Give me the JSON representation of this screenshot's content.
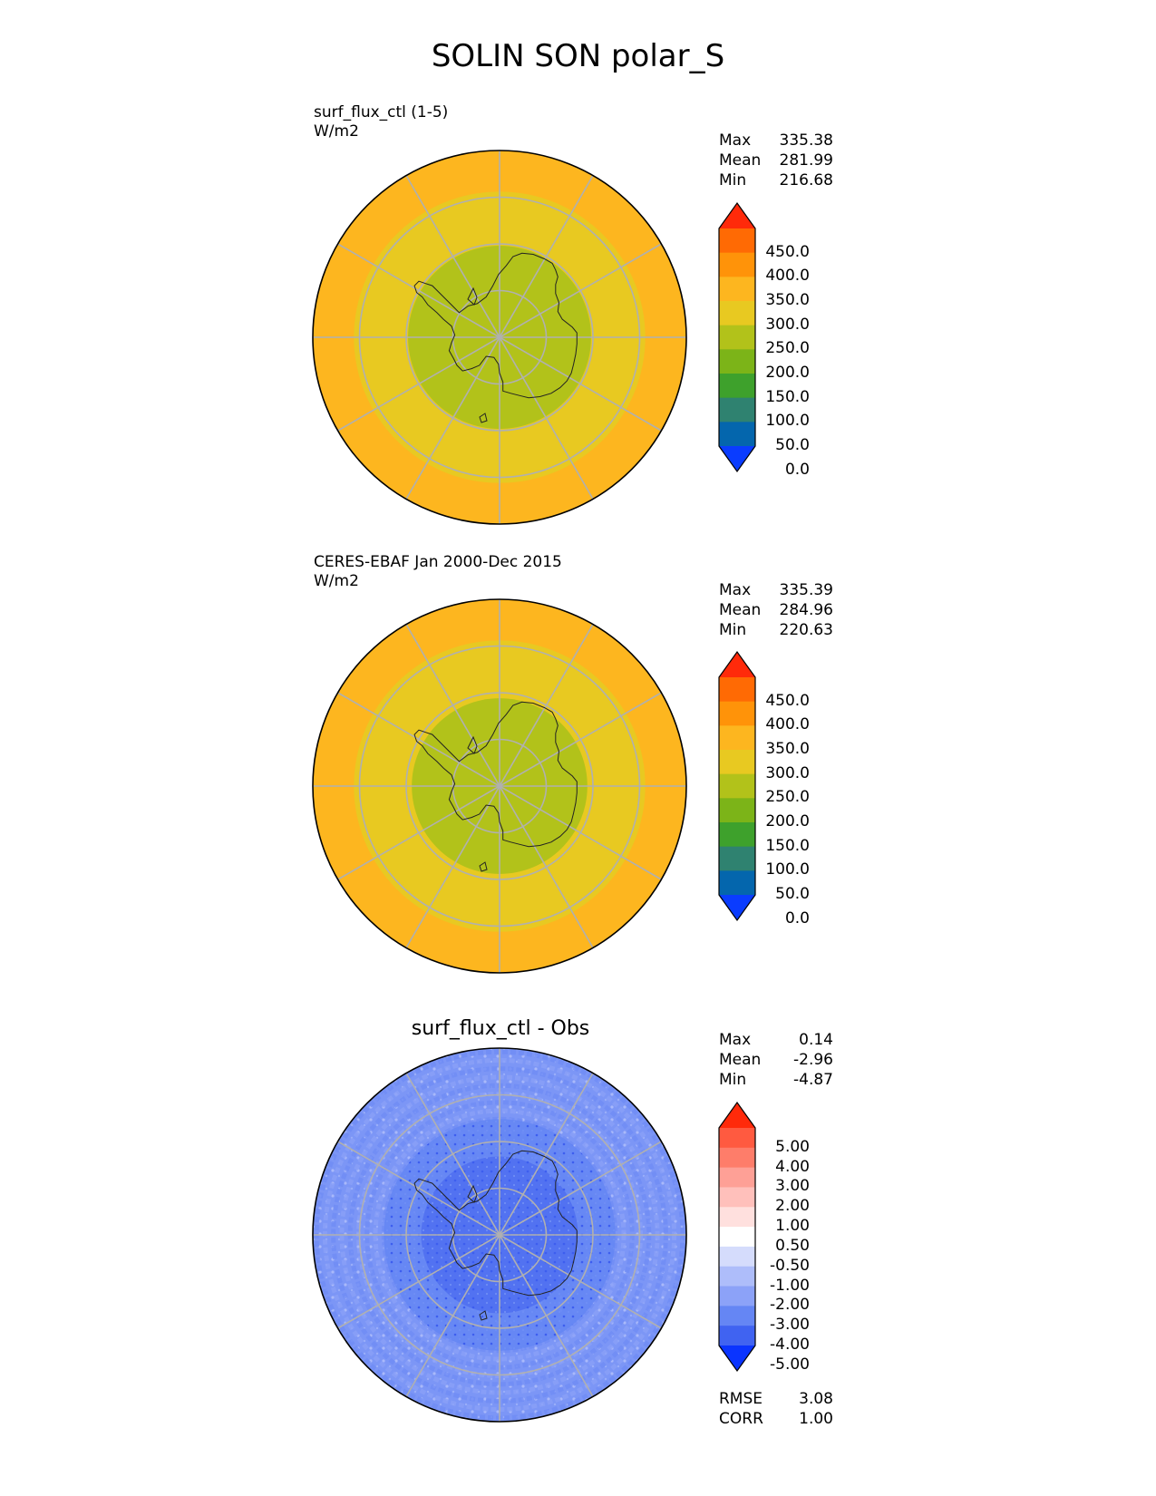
{
  "title": "SOLIN SON polar_S",
  "colors": {
    "ring_outer": "#fdb61f",
    "ring_mid": "#e8c921",
    "ring_inner": "#b2c21a",
    "diff_base": "#7c96f6",
    "diff_mid": "#6586f4",
    "diff_inner": "#4f6ff0",
    "grid": "#b0b0b0",
    "coast": "#222222"
  },
  "panels": [
    {
      "id": "test",
      "title_line1": "surf_flux_ctl (1-5)",
      "title_line2": "W/m2",
      "stats": [
        {
          "label": "Max",
          "value": "335.38"
        },
        {
          "label": "Mean",
          "value": "281.99"
        },
        {
          "label": "Min",
          "value": "216.68"
        }
      ]
    },
    {
      "id": "ref",
      "title_line1": "CERES-EBAF Jan 2000-Dec 2015",
      "title_line2": "W/m2",
      "stats": [
        {
          "label": "Max",
          "value": "335.39"
        },
        {
          "label": "Mean",
          "value": "284.96"
        },
        {
          "label": "Min",
          "value": "220.63"
        }
      ]
    },
    {
      "id": "diff",
      "title_center": "surf_flux_ctl - Obs",
      "stats": [
        {
          "label": "Max",
          "value": "0.14"
        },
        {
          "label": "Mean",
          "value": "-2.96"
        },
        {
          "label": "Min",
          "value": "-4.87"
        }
      ],
      "metrics": [
        {
          "label": "RMSE",
          "value": "3.08"
        },
        {
          "label": "CORR",
          "value": "1.00"
        }
      ]
    }
  ],
  "colorbar_main": {
    "labels": [
      "450.0",
      "400.0",
      "350.0",
      "300.0",
      "250.0",
      "200.0",
      "150.0",
      "100.0",
      "50.0",
      "0.0"
    ],
    "colors": [
      "#ff2a0a",
      "#ff6a04",
      "#ff9309",
      "#fdb61f",
      "#e8c921",
      "#b2c21a",
      "#7cb418",
      "#3ea12c",
      "#2f8270",
      "#0466ad",
      "#0a3cff"
    ]
  },
  "colorbar_diff": {
    "labels": [
      "5.00",
      "4.00",
      "3.00",
      "2.00",
      "1.00",
      "0.50",
      "-0.50",
      "-1.00",
      "-2.00",
      "-3.00",
      "-4.00",
      "-5.00"
    ],
    "colors": [
      "#ff2a0a",
      "#ff5a40",
      "#fe7d6a",
      "#fea096",
      "#ffc0bb",
      "#ffe0de",
      "#ffffff",
      "#d5dcfc",
      "#aebdfa",
      "#8ca2f8",
      "#6586f4",
      "#4063f1",
      "#0a34ff"
    ]
  },
  "chart_data": [
    {
      "type": "heatmap",
      "title": "surf_flux_ctl (1-5)",
      "units": "W/m2",
      "projection": "south polar stereographic",
      "levels": [
        0,
        50,
        100,
        150,
        200,
        250,
        300,
        350,
        400,
        450
      ],
      "max": 335.38,
      "mean": 281.99,
      "min": 216.68
    },
    {
      "type": "heatmap",
      "title": "CERES-EBAF Jan 2000-Dec 2015",
      "units": "W/m2",
      "projection": "south polar stereographic",
      "levels": [
        0,
        50,
        100,
        150,
        200,
        250,
        300,
        350,
        400,
        450
      ],
      "max": 335.39,
      "mean": 284.96,
      "min": 220.63
    },
    {
      "type": "heatmap",
      "title": "surf_flux_ctl - Obs",
      "projection": "south polar stereographic",
      "levels": [
        -5.0,
        -4.0,
        -3.0,
        -2.0,
        -1.0,
        -0.5,
        0.5,
        1.0,
        2.0,
        3.0,
        4.0,
        5.0
      ],
      "max": 0.14,
      "mean": -2.96,
      "min": -4.87,
      "rmse": 3.08,
      "corr": 1.0
    }
  ]
}
